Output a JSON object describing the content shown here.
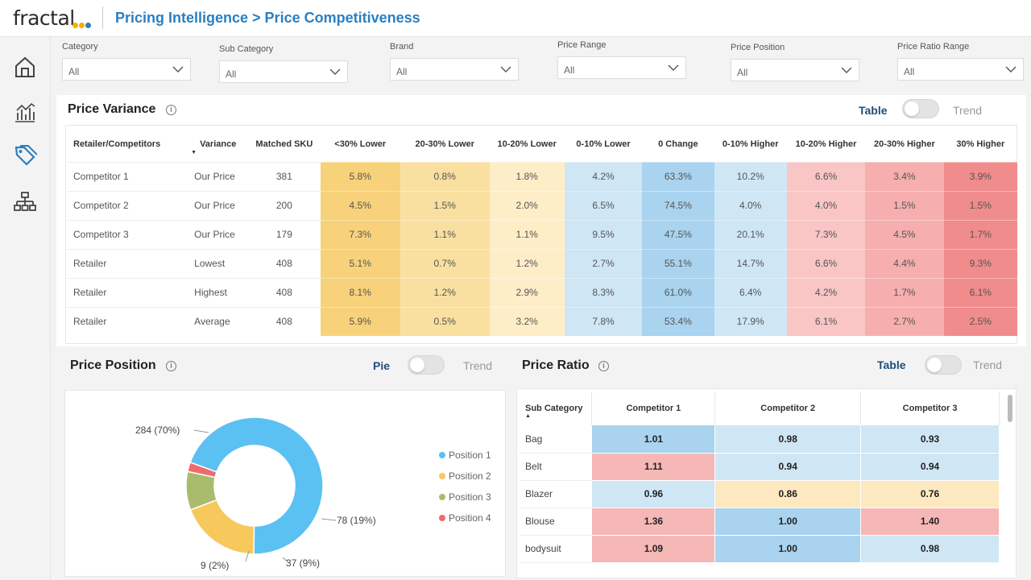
{
  "app": {
    "logo_text": "fractal",
    "breadcrumb": "Pricing Intelligence > Price Competitiveness"
  },
  "colors": {
    "brand_blue": "#2a7fc1",
    "lower_yellow_dark": "#f7d27a",
    "lower_yellow_mid": "#fae0a0",
    "lower_yellow_light": "#fdeec8",
    "blue_light": "#cfe6f5",
    "blue_mid": "#a9d3ef",
    "red_light": "#f9c5c5",
    "red_mid": "#f6aeae",
    "red_dark": "#f08c8c"
  },
  "sidebar": {
    "items": [
      {
        "icon": "home-icon"
      },
      {
        "icon": "line-chart-icon"
      },
      {
        "icon": "price-tag-icon"
      },
      {
        "icon": "hierarchy-icon"
      }
    ]
  },
  "filters": [
    {
      "label": "Category",
      "value": "All"
    },
    {
      "label": "Sub Category",
      "value": "All"
    },
    {
      "label": "Brand",
      "value": "All"
    },
    {
      "label": "Price Range",
      "value": "All"
    },
    {
      "label": "Price Position",
      "value": "All"
    },
    {
      "label": "Price Ratio Range",
      "value": "All"
    }
  ],
  "variance": {
    "title": "Price Variance",
    "toggle_on": "Table",
    "toggle_off": "Trend",
    "sort_indicator": "▼",
    "headers": [
      "Retailer/Competitors",
      "Variance",
      "Matched SKU",
      "<30% Lower",
      "20-30% Lower",
      "10-20% Lower",
      "0-10% Lower",
      "0 Change",
      "0-10% Higher",
      "10-20% Higher",
      "20-30% Higher",
      "30% Higher"
    ],
    "rows": [
      [
        "Competitor 1",
        "Our Price",
        "381",
        "5.8%",
        "0.8%",
        "1.8%",
        "4.2%",
        "63.3%",
        "10.2%",
        "6.6%",
        "3.4%",
        "3.9%"
      ],
      [
        "Competitor 2",
        "Our Price",
        "200",
        "4.5%",
        "1.5%",
        "2.0%",
        "6.5%",
        "74.5%",
        "4.0%",
        "4.0%",
        "1.5%",
        "1.5%"
      ],
      [
        "Competitor 3",
        "Our Price",
        "179",
        "7.3%",
        "1.1%",
        "1.1%",
        "9.5%",
        "47.5%",
        "20.1%",
        "7.3%",
        "4.5%",
        "1.7%"
      ],
      [
        "Retailer",
        "Lowest",
        "408",
        "5.1%",
        "0.7%",
        "1.2%",
        "2.7%",
        "55.1%",
        "14.7%",
        "6.6%",
        "4.4%",
        "9.3%"
      ],
      [
        "Retailer",
        "Highest",
        "408",
        "8.1%",
        "1.2%",
        "2.9%",
        "8.3%",
        "61.0%",
        "6.4%",
        "4.2%",
        "1.7%",
        "6.1%"
      ],
      [
        "Retailer",
        "Average",
        "408",
        "5.9%",
        "0.5%",
        "3.2%",
        "7.8%",
        "53.4%",
        "17.9%",
        "6.1%",
        "2.7%",
        "2.5%"
      ]
    ]
  },
  "position": {
    "title": "Price Position",
    "toggle_on": "Pie",
    "toggle_off": "Trend",
    "legend": [
      {
        "name": "Position 1",
        "color": "#5bc0f2"
      },
      {
        "name": "Position 2",
        "color": "#f7c85c"
      },
      {
        "name": "Position 3",
        "color": "#a9bc6e"
      },
      {
        "name": "Position 4",
        "color": "#ef6b6b"
      }
    ],
    "labels": [
      "284 (70%)",
      "78 (19%)",
      "37 (9%)",
      "9 (2%)"
    ]
  },
  "ratio": {
    "title": "Price Ratio",
    "toggle_on": "Table",
    "toggle_off": "Trend",
    "sort_indicator": "▲",
    "headers": [
      "Sub Category",
      "Competitor 1",
      "Competitor 2",
      "Competitor 3"
    ],
    "rows": [
      [
        "Bag",
        "1.01",
        "0.98",
        "0.93"
      ],
      [
        "Belt",
        "1.11",
        "0.94",
        "0.94"
      ],
      [
        "Blazer",
        "0.96",
        "0.86",
        "0.76"
      ],
      [
        "Blouse",
        "1.36",
        "1.00",
        "1.40"
      ],
      [
        "bodysuit",
        "1.09",
        "1.00",
        "0.98"
      ]
    ]
  },
  "chart_data": {
    "type": "pie",
    "title": "Price Position",
    "categories": [
      "Position 1",
      "Position 2",
      "Position 3",
      "Position 4"
    ],
    "values": [
      284,
      78,
      37,
      9
    ],
    "percent": [
      70,
      19,
      9,
      2
    ],
    "donut": true,
    "legend": "right"
  }
}
